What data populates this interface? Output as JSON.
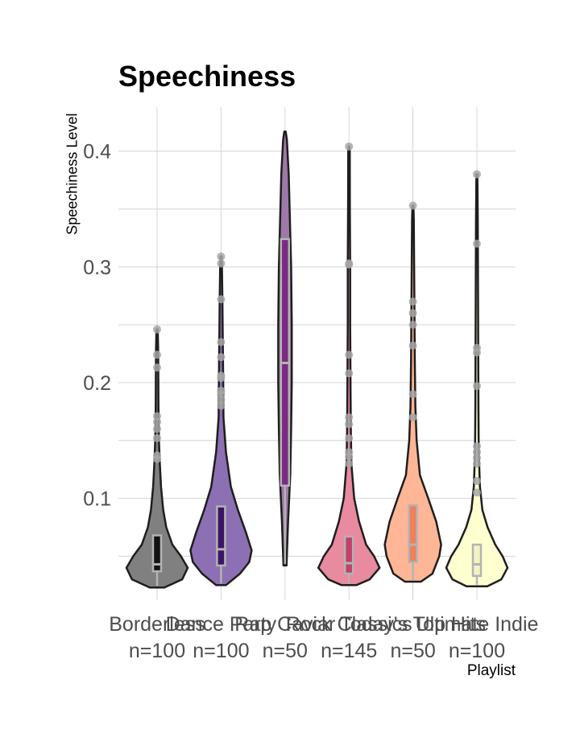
{
  "chart_data": {
    "type": "violin",
    "title": "Speechiness",
    "xlabel": "Playlist",
    "ylabel": "Speechiness Level",
    "ylim": [
      0.012,
      0.438
    ],
    "yticks": [
      0.1,
      0.2,
      0.3,
      0.4
    ],
    "ytick_labels": [
      "0.1",
      "0.2",
      "0.3",
      "0.4"
    ],
    "grid": true,
    "categories": [
      {
        "name": "Borderless",
        "count_label": "n=100",
        "color": "#808080",
        "violin": {
          "ymin": 0.023,
          "ymax": 0.246,
          "shape": [
            [
              0.023,
              0.24
            ],
            [
              0.03,
              0.82
            ],
            [
              0.04,
              1.0
            ],
            [
              0.05,
              0.78
            ],
            [
              0.06,
              0.5
            ],
            [
              0.075,
              0.3
            ],
            [
              0.09,
              0.2
            ],
            [
              0.11,
              0.13
            ],
            [
              0.13,
              0.09
            ],
            [
              0.15,
              0.06
            ],
            [
              0.18,
              0.045
            ],
            [
              0.21,
              0.04
            ],
            [
              0.23,
              0.035
            ],
            [
              0.246,
              0.02
            ]
          ]
        },
        "box": {
          "q1": 0.037,
          "median": 0.043,
          "q3": 0.068
        },
        "outliers": [
          0.246,
          0.224,
          0.213,
          0.171,
          0.166,
          0.16,
          0.152,
          0.137,
          0.134
        ]
      },
      {
        "name": "Dance Party",
        "count_label": "n=100",
        "color": "#8c70b3",
        "violin": {
          "ymin": 0.025,
          "ymax": 0.309,
          "shape": [
            [
              0.025,
              0.16
            ],
            [
              0.035,
              0.62
            ],
            [
              0.045,
              0.92
            ],
            [
              0.055,
              1.0
            ],
            [
              0.07,
              0.82
            ],
            [
              0.09,
              0.55
            ],
            [
              0.11,
              0.32
            ],
            [
              0.14,
              0.16
            ],
            [
              0.17,
              0.08
            ],
            [
              0.2,
              0.07
            ],
            [
              0.24,
              0.055
            ],
            [
              0.27,
              0.045
            ],
            [
              0.3,
              0.03
            ],
            [
              0.309,
              0.015
            ]
          ]
        },
        "box": {
          "q1": 0.042,
          "median": 0.056,
          "q3": 0.093
        },
        "outliers": [
          0.309,
          0.303,
          0.272,
          0.235,
          0.222,
          0.206,
          0.204,
          0.193,
          0.19,
          0.185,
          0.18
        ]
      },
      {
        "name": "Rap Caviar",
        "count_label": "n=50",
        "color": "#9e78a8",
        "violin": {
          "ymin": 0.042,
          "ymax": 0.417,
          "shape": [
            [
              0.042,
              0.05
            ],
            [
              0.08,
              0.1
            ],
            [
              0.12,
              0.17
            ],
            [
              0.16,
              0.2
            ],
            [
              0.2,
              0.22
            ],
            [
              0.25,
              0.22
            ],
            [
              0.3,
              0.2
            ],
            [
              0.34,
              0.16
            ],
            [
              0.38,
              0.12
            ],
            [
              0.41,
              0.06
            ],
            [
              0.417,
              0.02
            ]
          ]
        },
        "box": {
          "q1": 0.111,
          "median": 0.217,
          "q3": 0.324
        },
        "outliers": []
      },
      {
        "name": "Rock Classics",
        "count_label": "n=145",
        "color": "#e88aa0",
        "violin": {
          "ymin": 0.025,
          "ymax": 0.404,
          "shape": [
            [
              0.025,
              0.24
            ],
            [
              0.03,
              0.68
            ],
            [
              0.04,
              1.0
            ],
            [
              0.05,
              0.82
            ],
            [
              0.06,
              0.56
            ],
            [
              0.08,
              0.33
            ],
            [
              0.1,
              0.17
            ],
            [
              0.13,
              0.08
            ],
            [
              0.16,
              0.06
            ],
            [
              0.2,
              0.05
            ],
            [
              0.25,
              0.04
            ],
            [
              0.3,
              0.04
            ],
            [
              0.35,
              0.03
            ],
            [
              0.4,
              0.025
            ],
            [
              0.404,
              0.01
            ]
          ]
        },
        "box": {
          "q1": 0.035,
          "median": 0.044,
          "q3": 0.067
        },
        "outliers": [
          0.404,
          0.303,
          0.302,
          0.224,
          0.208,
          0.17,
          0.164,
          0.152,
          0.14,
          0.136,
          0.13
        ]
      },
      {
        "name": "Today's Top Hits",
        "count_label": "n=50",
        "color": "#ffb696",
        "violin": {
          "ymin": 0.028,
          "ymax": 0.353,
          "shape": [
            [
              0.028,
              0.26
            ],
            [
              0.035,
              0.64
            ],
            [
              0.05,
              0.86
            ],
            [
              0.06,
              0.92
            ],
            [
              0.08,
              0.76
            ],
            [
              0.1,
              0.5
            ],
            [
              0.12,
              0.23
            ],
            [
              0.15,
              0.12
            ],
            [
              0.18,
              0.08
            ],
            [
              0.22,
              0.06
            ],
            [
              0.26,
              0.05
            ],
            [
              0.3,
              0.04
            ],
            [
              0.34,
              0.03
            ],
            [
              0.353,
              0.015
            ]
          ]
        },
        "box": {
          "q1": 0.045,
          "median": 0.06,
          "q3": 0.094
        },
        "outliers": [
          0.353,
          0.27,
          0.26,
          0.25,
          0.232,
          0.19,
          0.17
        ]
      },
      {
        "name": "Ultimate Indie",
        "count_label": "n=100",
        "color": "#ffffd0",
        "violin": {
          "ymin": 0.024,
          "ymax": 0.38,
          "shape": [
            [
              0.024,
              0.34
            ],
            [
              0.03,
              0.8
            ],
            [
              0.04,
              1.0
            ],
            [
              0.05,
              0.84
            ],
            [
              0.06,
              0.6
            ],
            [
              0.075,
              0.35
            ],
            [
              0.09,
              0.18
            ],
            [
              0.11,
              0.1
            ],
            [
              0.14,
              0.06
            ],
            [
              0.18,
              0.05
            ],
            [
              0.22,
              0.045
            ],
            [
              0.26,
              0.04
            ],
            [
              0.3,
              0.035
            ],
            [
              0.34,
              0.03
            ],
            [
              0.38,
              0.015
            ]
          ]
        },
        "box": {
          "q1": 0.033,
          "median": 0.043,
          "q3": 0.06
        },
        "outliers": [
          0.38,
          0.32,
          0.23,
          0.226,
          0.197,
          0.145,
          0.14,
          0.135,
          0.13,
          0.115,
          0.105
        ]
      }
    ]
  }
}
